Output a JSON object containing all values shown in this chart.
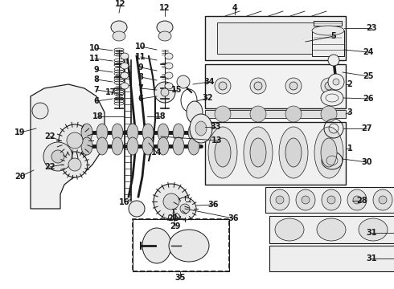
{
  "background_color": "#ffffff",
  "line_color": "#1a1a1a",
  "fig_width": 4.9,
  "fig_height": 3.6,
  "dpi": 100,
  "label_fontsize": 7.0,
  "label_fontweight": "bold"
}
